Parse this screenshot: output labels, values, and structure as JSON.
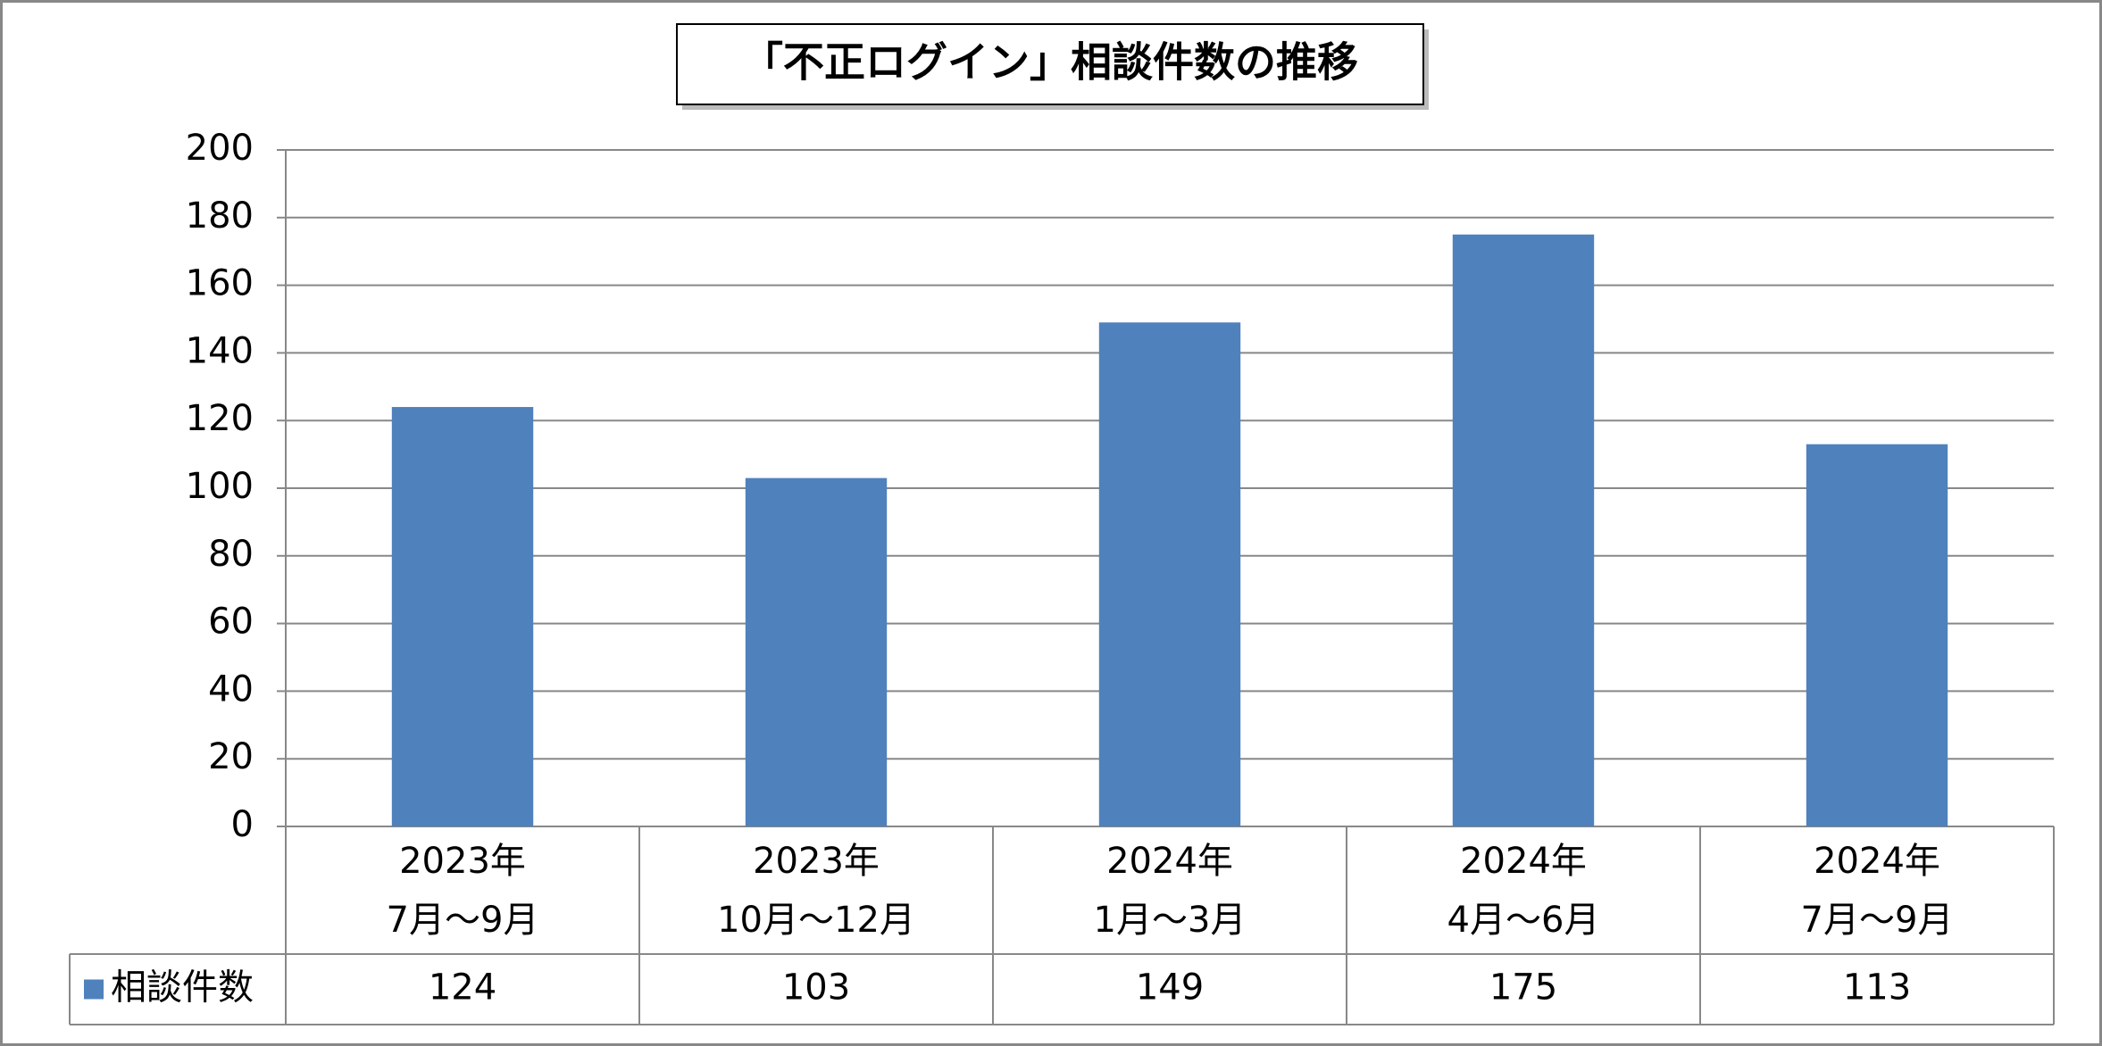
{
  "chart_data": {
    "type": "bar",
    "title": "「不正ログイン」相談件数の推移",
    "categories": [
      "2023年\n7月～9月",
      "2023年\n10月～12月",
      "2024年\n1月～3月",
      "2024年\n4月～6月",
      "2024年\n7月～9月"
    ],
    "series": [
      {
        "name": "相談件数",
        "color": "#4f81bd",
        "values": [
          124,
          103,
          149,
          175,
          113
        ]
      }
    ],
    "ylim": [
      0,
      200
    ],
    "yticks": [
      0,
      20,
      40,
      60,
      80,
      100,
      120,
      140,
      160,
      180,
      200
    ],
    "grid": true
  }
}
